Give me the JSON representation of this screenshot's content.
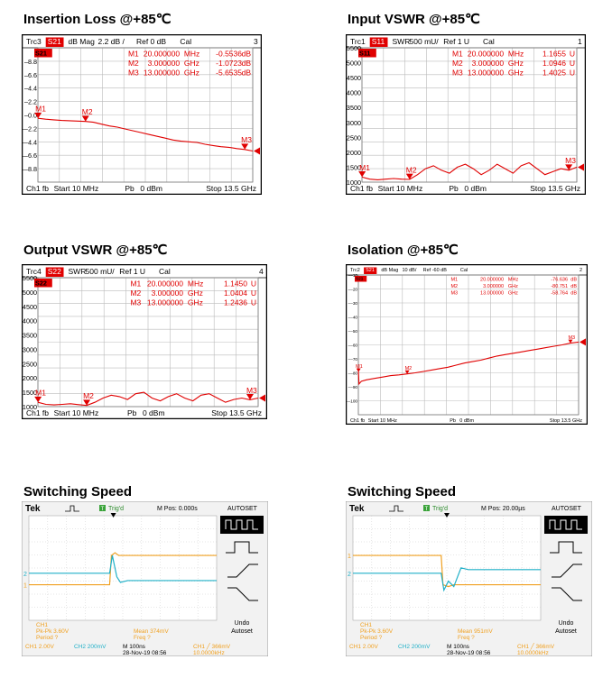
{
  "panels": {
    "p1": {
      "title": "Insertion Loss @+85℃"
    },
    "p2": {
      "title": "Input VSWR @+85℃"
    },
    "p3": {
      "title": "Output VSWR @+85℃"
    },
    "p4": {
      "title": "Isolation @+85℃"
    },
    "p5": {
      "title": "Switching Speed"
    },
    "p6": {
      "title": "Switching Speed"
    }
  },
  "chart_data": [
    {
      "type": "line",
      "trace": "Trc3",
      "param": "S21",
      "format": "dB Mag",
      "scale": "2.2 dB /",
      "ref": "Ref 0 dB",
      "cal": "Cal",
      "num": "3",
      "param_label": "S21",
      "yticks": [
        "8.8",
        "6.6",
        "4.4",
        "2.2",
        "0.0",
        "-2.2",
        "-4.4",
        "-6.6",
        "-8.8"
      ],
      "ylim": [
        -11,
        11
      ],
      "markers": [
        {
          "name": "M1",
          "freq": "20.000000",
          "unit": "MHz",
          "value": "-0.5536",
          "vunit": "dB"
        },
        {
          "name": "M2",
          "freq": "3.000000",
          "unit": "GHz",
          "value": "-1.0723",
          "vunit": "dB"
        },
        {
          "name": "M3",
          "freq": "13.000000",
          "unit": "GHz",
          "value": "-5.6535",
          "vunit": "dB"
        }
      ],
      "footer": {
        "ch": "Ch1",
        "fb": "fb",
        "start": "Start 10 MHz",
        "pb": "Pb",
        "dbm": "0 dBm",
        "stop": "Stop 13.5 GHz"
      },
      "x_ghz": [
        0.01,
        0.5,
        1,
        1.5,
        2,
        2.5,
        3,
        3.5,
        4,
        4.5,
        5,
        5.5,
        6,
        6.5,
        7,
        7.5,
        8,
        8.5,
        9,
        9.5,
        10,
        10.5,
        11,
        11.5,
        12,
        12.5,
        13,
        13.5
      ],
      "y": [
        -0.55,
        -0.7,
        -0.8,
        -0.9,
        -0.95,
        -1.0,
        -1.07,
        -1.2,
        -1.5,
        -1.8,
        -2.0,
        -2.3,
        -2.6,
        -2.9,
        -3.2,
        -3.5,
        -3.8,
        -4.1,
        -4.3,
        -4.4,
        -4.5,
        -4.8,
        -5.0,
        -5.2,
        -5.3,
        -5.5,
        -5.65,
        -5.9
      ]
    },
    {
      "type": "line",
      "trace": "Trc1",
      "param": "S11",
      "format": "SWR",
      "scale": "500 mU/",
      "ref": "Ref 1 U",
      "cal": "Cal",
      "num": "1",
      "param_label": "S11",
      "yticks": [
        "5500",
        "5000",
        "4500",
        "4000",
        "3500",
        "3000",
        "2500",
        "2000",
        "1500",
        "1000"
      ],
      "ylim": [
        1000,
        5500
      ],
      "markers": [
        {
          "name": "M1",
          "freq": "20.000000",
          "unit": "MHz",
          "value": "1.1655",
          "vunit": "U"
        },
        {
          "name": "M2",
          "freq": "3.000000",
          "unit": "GHz",
          "value": "1.0946",
          "vunit": "U"
        },
        {
          "name": "M3",
          "freq": "13.000000",
          "unit": "GHz",
          "value": "1.4025",
          "vunit": "U"
        }
      ],
      "footer": {
        "ch": "Ch1",
        "fb": "fb",
        "start": "Start 10 MHz",
        "pb": "Pb",
        "dbm": "0 dBm",
        "stop": "Stop 13.5 GHz"
      },
      "x_ghz": [
        0.01,
        0.5,
        1,
        1.5,
        2,
        2.5,
        3,
        3.5,
        4,
        4.5,
        5,
        5.5,
        6,
        6.5,
        7,
        7.5,
        8,
        8.5,
        9,
        9.5,
        10,
        10.5,
        11,
        11.5,
        12,
        12.5,
        13,
        13.5
      ],
      "y": [
        1170,
        1100,
        1080,
        1100,
        1120,
        1100,
        1090,
        1250,
        1450,
        1550,
        1400,
        1300,
        1500,
        1600,
        1450,
        1250,
        1400,
        1600,
        1450,
        1300,
        1550,
        1650,
        1450,
        1250,
        1350,
        1450,
        1400,
        1500
      ]
    },
    {
      "type": "line",
      "trace": "Trc4",
      "param": "S22",
      "format": "SWR",
      "scale": "500 mU/",
      "ref": "Ref 1 U",
      "cal": "Cal",
      "num": "4",
      "param_label": "S22",
      "yticks": [
        "5500",
        "5000",
        "4500",
        "4000",
        "3500",
        "3000",
        "2500",
        "2000",
        "1500",
        "1000"
      ],
      "ylim": [
        1000,
        5500
      ],
      "markers": [
        {
          "name": "M1",
          "freq": "20.000000",
          "unit": "MHz",
          "value": "1.1450",
          "vunit": "U"
        },
        {
          "name": "M2",
          "freq": "3.000000",
          "unit": "GHz",
          "value": "1.0404",
          "vunit": "U"
        },
        {
          "name": "M3",
          "freq": "13.000000",
          "unit": "GHz",
          "value": "1.2436",
          "vunit": "U"
        }
      ],
      "footer": {
        "ch": "Ch1",
        "fb": "fb",
        "start": "Start 10 MHz",
        "pb": "Pb",
        "dbm": "0 dBm",
        "stop": "Stop 13.5 GHz"
      },
      "x_ghz": [
        0.01,
        0.5,
        1,
        1.5,
        2,
        2.5,
        3,
        3.5,
        4,
        4.5,
        5,
        5.5,
        6,
        6.5,
        7,
        7.5,
        8,
        8.5,
        9,
        9.5,
        10,
        10.5,
        11,
        11.5,
        12,
        12.5,
        13,
        13.5
      ],
      "y": [
        1150,
        1080,
        1060,
        1080,
        1100,
        1070,
        1040,
        1150,
        1300,
        1400,
        1350,
        1250,
        1450,
        1500,
        1300,
        1200,
        1350,
        1450,
        1300,
        1200,
        1400,
        1450,
        1300,
        1150,
        1250,
        1300,
        1240,
        1300
      ]
    },
    {
      "type": "line",
      "trace": "Trc2",
      "param": "S21",
      "format": "dB Mag",
      "scale": "10 dB/",
      "ref": "Ref -60 dB",
      "cal": "Cal",
      "num": "2",
      "param_label": "S21",
      "yticks": [
        "-10",
        "-20",
        "-30",
        "-40",
        "-50",
        "-60",
        "-70",
        "-80",
        "-90",
        "-100"
      ],
      "ylim": [
        -110,
        -10
      ],
      "markers": [
        {
          "name": "M1",
          "freq": "20.000000",
          "unit": "MHz",
          "value": "-76.636",
          "vunit": "dB"
        },
        {
          "name": "M2",
          "freq": "3.000000",
          "unit": "GHz",
          "value": "-80.751",
          "vunit": "dB"
        },
        {
          "name": "M3",
          "freq": "13.000000",
          "unit": "GHz",
          "value": "-58.764",
          "vunit": "dB"
        }
      ],
      "footer": {
        "ch": "Ch1",
        "fb": "fb",
        "start": "Start 10 MHz",
        "pb": "Pb",
        "dbm": "0 dBm",
        "stop": "Stop 13.5 GHz"
      },
      "x_ghz": [
        0.01,
        0.05,
        0.2,
        0.5,
        1,
        1.5,
        2,
        2.5,
        3,
        3.5,
        4,
        4.5,
        5,
        5.5,
        6,
        6.5,
        7,
        7.5,
        8,
        8.5,
        9,
        9.5,
        10,
        10.5,
        11,
        11.5,
        12,
        12.5,
        13,
        13.5
      ],
      "y": [
        -76.6,
        -88,
        -86,
        -85,
        -84,
        -83,
        -82,
        -81.5,
        -80.8,
        -80,
        -79,
        -78,
        -77,
        -76,
        -74.5,
        -73,
        -72,
        -71,
        -69.5,
        -68,
        -67,
        -66,
        -65,
        -64,
        -63,
        -62,
        -61,
        -60,
        -58.8,
        -58
      ]
    }
  ],
  "scopes": [
    {
      "brand": "Tek",
      "trig": "Trig'd",
      "mpos": "M Pos: 0.000s",
      "autoset": "AUTOSET",
      "undo": "Undo",
      "autoset2": "Autoset",
      "ch1_meas": "CH1",
      "pkpk": "Pk-Pk 3.60V",
      "period": "Period ?",
      "mean": "Mean 374mV",
      "freq": "Freq ?",
      "ch1_scale": "CH1  2.00V",
      "ch2_scale": "CH2  200mV",
      "mscale": "M 100ns",
      "date": "28-Nov-19 08:56",
      "trig_level": "CH1 ╱ 366mV",
      "trig_freq": "10.0000kHz",
      "ch1_marker": "1",
      "ch2_marker": "2",
      "edge_frac": 0.43
    },
    {
      "brand": "Tek",
      "trig": "Trig'd",
      "mpos": "M Pos: 20.00µs",
      "autoset": "AUTOSET",
      "undo": "Undo",
      "autoset2": "Autoset",
      "ch1_meas": "CH1",
      "pkpk": "Pk-Pk 3.60V",
      "period": "Period ?",
      "mean": "Mean 951mV",
      "freq": "Freq ?",
      "ch1_scale": "CH1  2.00V",
      "ch2_scale": "CH2  200mV",
      "mscale": "M 100ns",
      "date": "28-Nov-19 08:56",
      "trig_level": "CH1 ╱ 366mV",
      "trig_freq": "10.0000kHz",
      "ch1_marker": "1",
      "ch2_marker": "2",
      "edge_frac": 0.47
    }
  ]
}
